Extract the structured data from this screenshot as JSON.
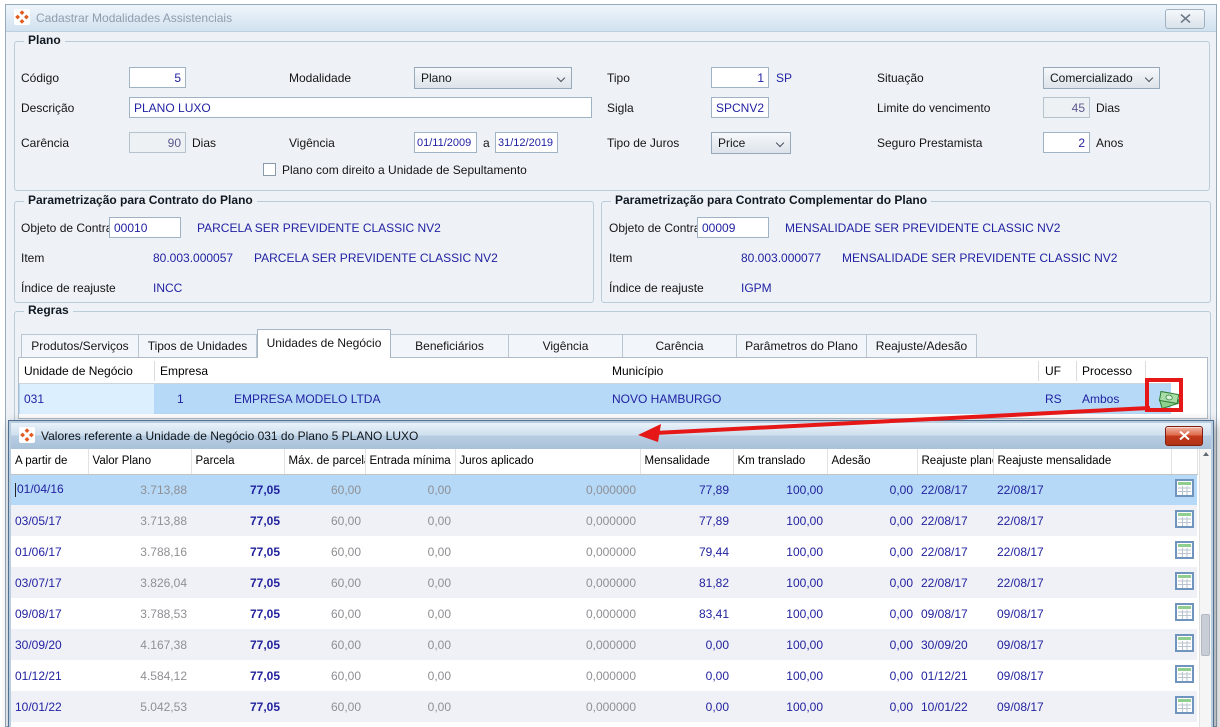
{
  "main_window": {
    "title": "Cadastrar Modalidades Assistenciais",
    "plano_section": {
      "legend": "Plano",
      "codigo": {
        "label": "Código",
        "value": "5"
      },
      "modalidade": {
        "label": "Modalidade",
        "value": "Plano"
      },
      "tipo": {
        "label": "Tipo",
        "value": "1",
        "suffix": "SP"
      },
      "situacao": {
        "label": "Situação",
        "value": "Comercializado"
      },
      "descricao": {
        "label": "Descrição",
        "value": "PLANO LUXO"
      },
      "sigla": {
        "label": "Sigla",
        "value": "SPCNV2"
      },
      "limite_vencimento": {
        "label": "Limite do vencimento",
        "value": "45",
        "suffix": "Dias"
      },
      "carencia": {
        "label": "Carência",
        "value": "90",
        "suffix": "Dias"
      },
      "vigencia": {
        "label": "Vigência",
        "start": "01/11/2009",
        "separator": "a",
        "end": "31/12/2019"
      },
      "tipo_juros": {
        "label": "Tipo de Juros",
        "value": "Price"
      },
      "seguro_prestamista": {
        "label": "Seguro Prestamista",
        "value": "2",
        "suffix": "Anos"
      },
      "sepultamento_checkbox": {
        "label": "Plano com direito a Unidade de Sepultamento",
        "checked": false
      }
    },
    "param_contrato": {
      "legend": "Parametrização para Contrato do Plano",
      "objeto": {
        "label": "Objeto de Contrato",
        "value": "00010",
        "descricao": "PARCELA SER PREVIDENTE CLASSIC NV2"
      },
      "item": {
        "label": "Item",
        "codigo": "80.003.000057",
        "descricao": "PARCELA SER PREVIDENTE CLASSIC NV2"
      },
      "indice": {
        "label": "Índice de reajuste",
        "value": "INCC"
      }
    },
    "param_complementar": {
      "legend": "Parametrização para Contrato Complementar do Plano",
      "objeto": {
        "label": "Objeto de Contrato",
        "value": "00009",
        "descricao": "MENSALIDADE SER PREVIDENTE CLASSIC NV2"
      },
      "item": {
        "label": "Item",
        "codigo": "80.003.000077",
        "descricao": "MENSALIDADE SER PREVIDENTE CLASSIC NV2"
      },
      "indice": {
        "label": "Índice de reajuste",
        "value": "IGPM"
      }
    },
    "regras_section": {
      "legend": "Regras",
      "tabs": [
        {
          "label": "Produtos/Serviços",
          "active": false
        },
        {
          "label": "Tipos de Unidades",
          "active": false
        },
        {
          "label": "Unidades de Negócio",
          "active": true
        },
        {
          "label": "Beneficiários",
          "active": false
        },
        {
          "label": "Vigência",
          "active": false
        },
        {
          "label": "Carência",
          "active": false
        },
        {
          "label": "Parâmetros do Plano",
          "active": false
        },
        {
          "label": "Reajuste/Adesão",
          "active": false
        }
      ],
      "table": {
        "headers": {
          "unidade": "Unidade de Negócio",
          "empresa": "Empresa",
          "municipio": "Município",
          "uf": "UF",
          "processo": "Processo"
        },
        "row": {
          "unidade": "031",
          "empresa_codigo": "1",
          "empresa_nome": "EMPRESA MODELO LTDA",
          "municipio": "NOVO HAMBURGO",
          "uf": "RS",
          "processo": "Ambos"
        }
      }
    }
  },
  "valores_window": {
    "title": "Valores referente a Unidade de Negócio 031 do Plano 5 PLANO LUXO",
    "table": {
      "columns": [
        {
          "key": "a_partir_de",
          "label": "A partir de"
        },
        {
          "key": "valor_plano",
          "label": "Valor Plano"
        },
        {
          "key": "parcela",
          "label": "Parcela"
        },
        {
          "key": "max_parcelas",
          "label": "Máx. de parcelas"
        },
        {
          "key": "entrada_minima",
          "label": "Entrada mínima"
        },
        {
          "key": "juros_aplicado",
          "label": "Juros aplicado"
        },
        {
          "key": "mensalidade",
          "label": "Mensalidade"
        },
        {
          "key": "km_translado",
          "label": "Km translado"
        },
        {
          "key": "adesao",
          "label": "Adesão"
        },
        {
          "key": "reajuste_plano",
          "label": "Reajuste plano"
        },
        {
          "key": "reajuste_mensalidade",
          "label": "Reajuste mensalidade"
        }
      ],
      "rows": [
        {
          "a_partir_de": "01/04/16",
          "valor_plano": "3.713,88",
          "parcela": "77,05",
          "max_parcelas": "60,00",
          "entrada_minima": "0,00",
          "juros_aplicado": "0,000000",
          "mensalidade": "77,89",
          "km_translado": "100,00",
          "adesao": "0,00",
          "reajuste_plano": "22/08/17",
          "reajuste_mensalidade": "22/08/17"
        },
        {
          "a_partir_de": "03/05/17",
          "valor_plano": "3.713,88",
          "parcela": "77,05",
          "max_parcelas": "60,00",
          "entrada_minima": "0,00",
          "juros_aplicado": "0,000000",
          "mensalidade": "77,89",
          "km_translado": "100,00",
          "adesao": "0,00",
          "reajuste_plano": "22/08/17",
          "reajuste_mensalidade": "22/08/17"
        },
        {
          "a_partir_de": "01/06/17",
          "valor_plano": "3.788,16",
          "parcela": "77,05",
          "max_parcelas": "60,00",
          "entrada_minima": "0,00",
          "juros_aplicado": "0,000000",
          "mensalidade": "79,44",
          "km_translado": "100,00",
          "adesao": "0,00",
          "reajuste_plano": "22/08/17",
          "reajuste_mensalidade": "22/08/17"
        },
        {
          "a_partir_de": "03/07/17",
          "valor_plano": "3.826,04",
          "parcela": "77,05",
          "max_parcelas": "60,00",
          "entrada_minima": "0,00",
          "juros_aplicado": "0,000000",
          "mensalidade": "81,82",
          "km_translado": "100,00",
          "adesao": "0,00",
          "reajuste_plano": "22/08/17",
          "reajuste_mensalidade": "22/08/17"
        },
        {
          "a_partir_de": "09/08/17",
          "valor_plano": "3.788,53",
          "parcela": "77,05",
          "max_parcelas": "60,00",
          "entrada_minima": "0,00",
          "juros_aplicado": "0,000000",
          "mensalidade": "83,41",
          "km_translado": "100,00",
          "adesao": "0,00",
          "reajuste_plano": "09/08/17",
          "reajuste_mensalidade": "09/08/17"
        },
        {
          "a_partir_de": "30/09/20",
          "valor_plano": "4.167,38",
          "parcela": "77,05",
          "max_parcelas": "60,00",
          "entrada_minima": "0,00",
          "juros_aplicado": "0,000000",
          "mensalidade": "0,00",
          "km_translado": "100,00",
          "adesao": "0,00",
          "reajuste_plano": "30/09/20",
          "reajuste_mensalidade": "09/08/17"
        },
        {
          "a_partir_de": "01/12/21",
          "valor_plano": "4.584,12",
          "parcela": "77,05",
          "max_parcelas": "60,00",
          "entrada_minima": "0,00",
          "juros_aplicado": "0,000000",
          "mensalidade": "0,00",
          "km_translado": "100,00",
          "adesao": "0,00",
          "reajuste_plano": "01/12/21",
          "reajuste_mensalidade": "09/08/17"
        },
        {
          "a_partir_de": "10/01/22",
          "valor_plano": "5.042,53",
          "parcela": "77,05",
          "max_parcelas": "60,00",
          "entrada_minima": "0,00",
          "juros_aplicado": "0,000000",
          "mensalidade": "0,00",
          "km_translado": "100,00",
          "adesao": "0,00",
          "reajuste_plano": "10/01/22",
          "reajuste_mensalidade": "09/08/17"
        }
      ]
    }
  },
  "annotation": {
    "highlight_color": "#e51717"
  }
}
